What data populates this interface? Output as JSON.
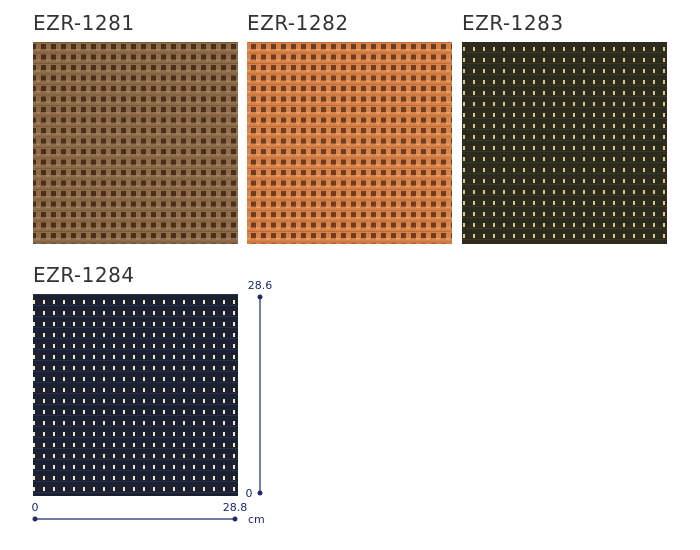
{
  "swatches": [
    {
      "code": "EZR-1281"
    },
    {
      "code": "EZR-1282"
    },
    {
      "code": "EZR-1283"
    },
    {
      "code": "EZR-1284"
    }
  ],
  "dimensions": {
    "height": {
      "min": 0,
      "max": 28.6
    },
    "width": {
      "min": 0,
      "max": 28.8
    },
    "unit": "cm"
  }
}
